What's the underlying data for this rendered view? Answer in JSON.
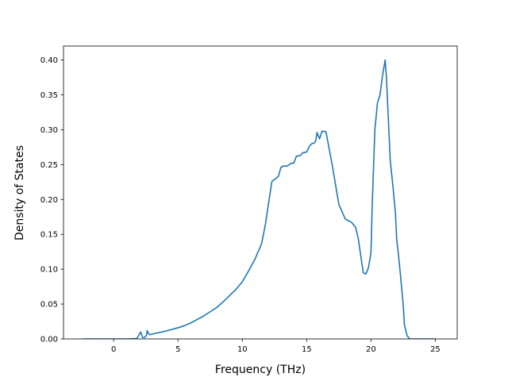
{
  "chart_data": {
    "type": "line",
    "title": "",
    "xlabel": "Frequency (THz)",
    "ylabel": "Density of States",
    "xlim": [
      -3.9,
      26.7
    ],
    "ylim": [
      0.0,
      0.42
    ],
    "grid": false,
    "legend": "none",
    "line_color": "#1f77b4",
    "xticks": [
      {
        "value": 0,
        "label": "0"
      },
      {
        "value": 5,
        "label": "5"
      },
      {
        "value": 10,
        "label": "10"
      },
      {
        "value": 15,
        "label": "15"
      },
      {
        "value": 20,
        "label": "20"
      },
      {
        "value": 25,
        "label": "25"
      }
    ],
    "yticks": [
      {
        "value": 0.0,
        "label": "0.00"
      },
      {
        "value": 0.05,
        "label": "0.05"
      },
      {
        "value": 0.1,
        "label": "0.10"
      },
      {
        "value": 0.15,
        "label": "0.15"
      },
      {
        "value": 0.2,
        "label": "0.20"
      },
      {
        "value": 0.25,
        "label": "0.25"
      },
      {
        "value": 0.3,
        "label": "0.30"
      },
      {
        "value": 0.35,
        "label": "0.35"
      },
      {
        "value": 0.4,
        "label": "0.40"
      }
    ],
    "series": [
      {
        "x": [
          -2.4,
          0.0,
          1.0,
          1.8,
          2.1,
          2.25,
          2.4,
          2.55,
          2.6,
          2.7,
          2.8,
          3.0,
          4.0,
          5.0,
          5.5,
          6.0,
          7.0,
          7.5,
          8.0,
          8.5,
          9.0,
          9.5,
          10.0,
          10.5,
          11.0,
          11.2,
          11.4,
          11.5,
          11.6,
          11.8,
          12.0,
          12.3,
          12.6,
          12.8,
          13.0,
          13.2,
          13.5,
          13.8,
          14.0,
          14.2,
          14.5,
          14.7,
          15.0,
          15.2,
          15.4,
          15.6,
          15.7,
          15.8,
          16.0,
          16.2,
          16.5,
          17.0,
          17.5,
          18.0,
          18.5,
          18.8,
          19.0,
          19.2,
          19.4,
          19.6,
          19.8,
          20.0,
          20.1,
          20.3,
          20.5,
          20.7,
          20.9,
          21.0,
          21.1,
          21.2,
          21.3,
          21.5,
          21.7,
          21.9,
          22.0,
          22.1,
          22.3,
          22.5,
          22.6,
          22.8,
          23.0,
          25.0
        ],
        "y": [
          0.0,
          0.0,
          0.0,
          0.0005,
          0.01,
          0.002,
          0.002,
          0.005,
          0.012,
          0.008,
          0.006,
          0.007,
          0.011,
          0.016,
          0.019,
          0.023,
          0.033,
          0.039,
          0.045,
          0.053,
          0.062,
          0.071,
          0.082,
          0.098,
          0.115,
          0.124,
          0.132,
          0.137,
          0.146,
          0.165,
          0.19,
          0.226,
          0.23,
          0.233,
          0.246,
          0.248,
          0.248,
          0.252,
          0.252,
          0.262,
          0.263,
          0.267,
          0.268,
          0.276,
          0.28,
          0.281,
          0.284,
          0.296,
          0.287,
          0.298,
          0.297,
          0.248,
          0.193,
          0.172,
          0.167,
          0.16,
          0.145,
          0.12,
          0.095,
          0.093,
          0.102,
          0.124,
          0.195,
          0.3,
          0.338,
          0.35,
          0.378,
          0.389,
          0.4,
          0.375,
          0.335,
          0.255,
          0.22,
          0.18,
          0.142,
          0.127,
          0.09,
          0.05,
          0.02,
          0.005,
          0.0,
          0.0
        ]
      }
    ]
  }
}
